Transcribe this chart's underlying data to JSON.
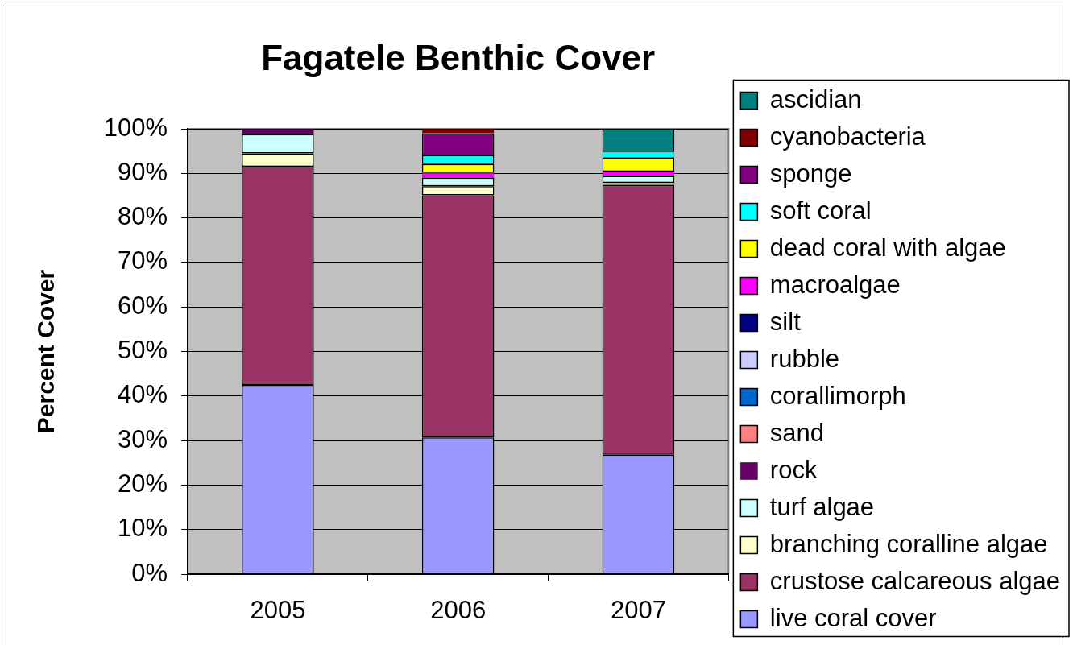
{
  "chart_data": {
    "type": "bar",
    "title": "Fagatele Benthic Cover",
    "ylabel": "Percent Cover",
    "categories": [
      "2005",
      "2006",
      "2007"
    ],
    "stacked": true,
    "series": [
      {
        "name": "live coral cover",
        "color": "#9999ff",
        "values": [
          42.5,
          30.7,
          26.8
        ]
      },
      {
        "name": "crustose calcareous algae",
        "color": "#993366",
        "values": [
          49.0,
          54.4,
          60.6
        ]
      },
      {
        "name": "branching coralline algae",
        "color": "#ffffcc",
        "values": [
          3.0,
          2.0,
          0.5
        ]
      },
      {
        "name": "turf algae",
        "color": "#ccffff",
        "values": [
          4.3,
          1.9,
          1.5
        ]
      },
      {
        "name": "rock",
        "color": "#660066",
        "values": [
          1.2,
          null,
          null
        ]
      },
      {
        "name": "sand",
        "color": "#ff8080",
        "values": [
          null,
          null,
          null
        ]
      },
      {
        "name": "corallimorph",
        "color": "#0066cc",
        "values": [
          null,
          null,
          null
        ]
      },
      {
        "name": "rubble",
        "color": "#ccccff",
        "values": [
          null,
          null,
          null
        ]
      },
      {
        "name": "silt",
        "color": "#000080",
        "values": [
          null,
          null,
          null
        ]
      },
      {
        "name": "macroalgae",
        "color": "#ff00ff",
        "values": [
          null,
          1.1,
          1.0
        ]
      },
      {
        "name": "dead coral with algae",
        "color": "#ffff00",
        "values": [
          null,
          2.0,
          3.2
        ]
      },
      {
        "name": "soft coral",
        "color": "#00ffff",
        "values": [
          null,
          2.0,
          1.2
        ]
      },
      {
        "name": "sponge",
        "color": "#800080",
        "values": [
          null,
          4.9,
          null
        ]
      },
      {
        "name": "cyanobacteria",
        "color": "#800000",
        "values": [
          null,
          1.0,
          null
        ]
      },
      {
        "name": "ascidian",
        "color": "#008080",
        "values": [
          null,
          null,
          5.2
        ]
      }
    ],
    "ylim": [
      0,
      100
    ],
    "yticks": [
      {
        "value": 0,
        "label": "0%"
      },
      {
        "value": 10,
        "label": "10%"
      },
      {
        "value": 20,
        "label": "20%"
      },
      {
        "value": 30,
        "label": "30%"
      },
      {
        "value": 40,
        "label": "40%"
      },
      {
        "value": 50,
        "label": "50%"
      },
      {
        "value": 60,
        "label": "60%"
      },
      {
        "value": 70,
        "label": "70%"
      },
      {
        "value": 80,
        "label": "80%"
      },
      {
        "value": 90,
        "label": "90%"
      },
      {
        "value": 100,
        "label": "100%"
      }
    ],
    "grid": "y",
    "legend": "right"
  }
}
